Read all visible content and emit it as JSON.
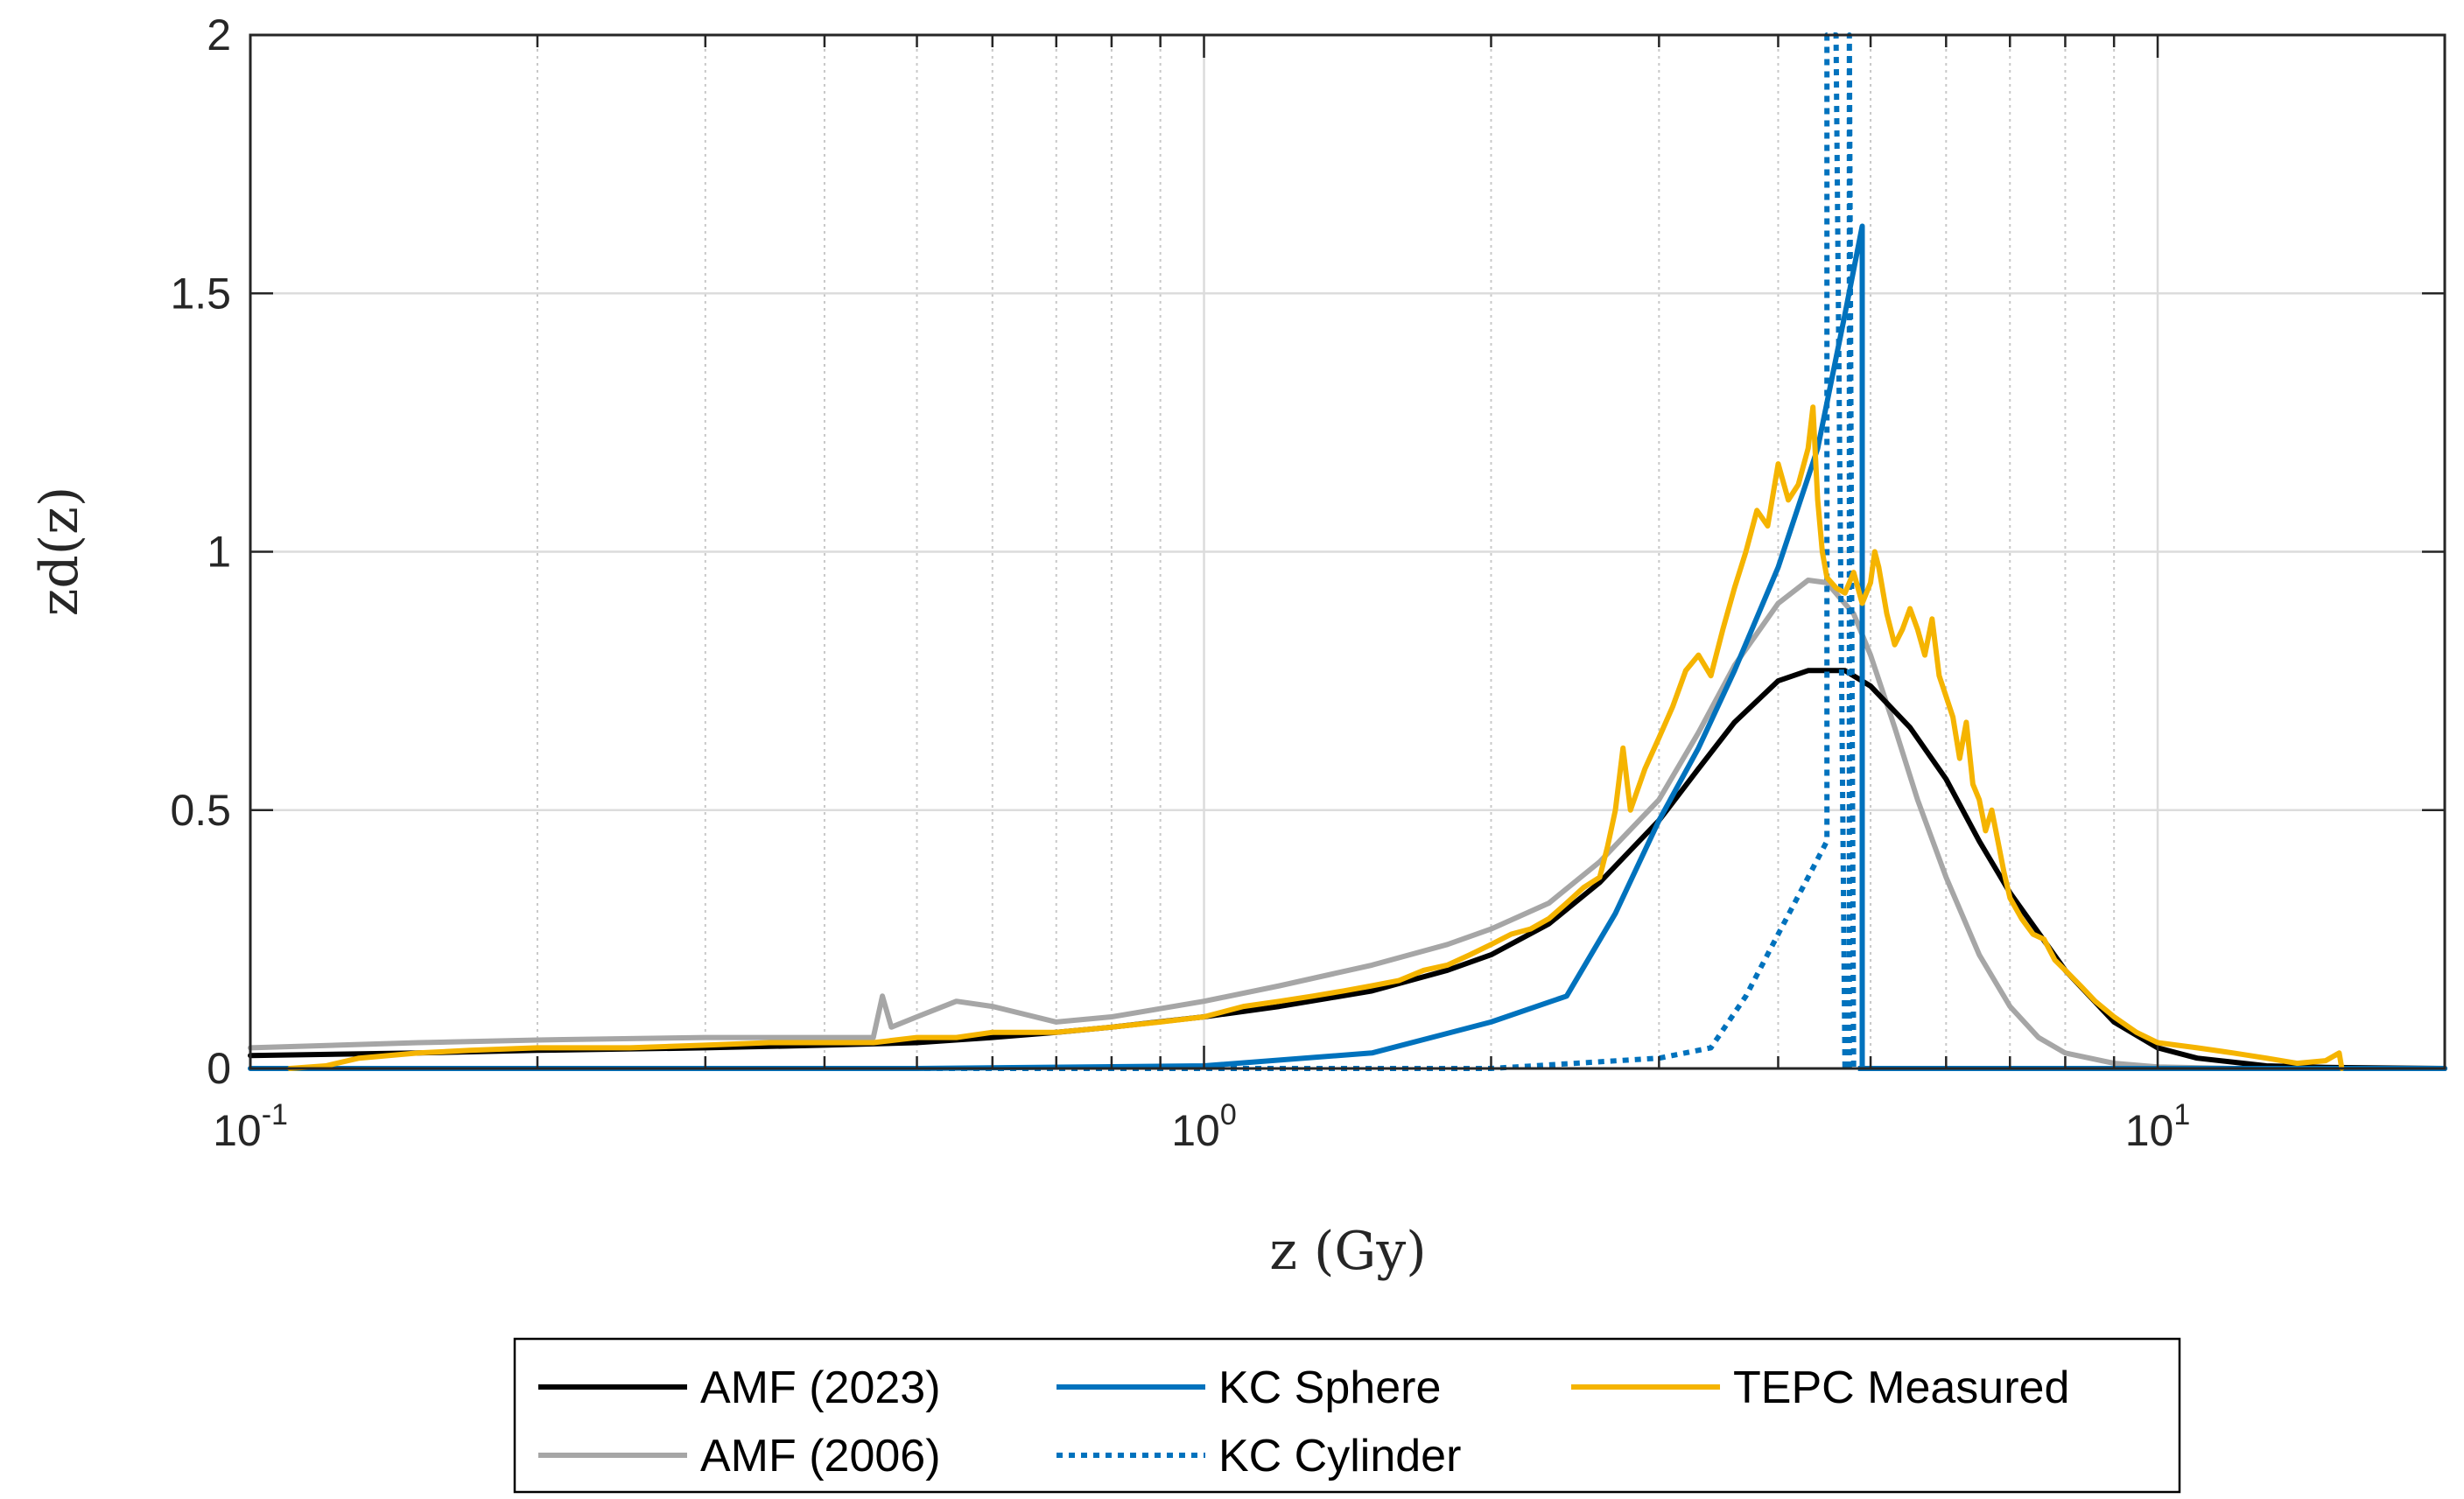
{
  "chart_data": {
    "type": "line",
    "xscale": "log",
    "xlabel": "z (Gy)",
    "ylabel": "zd(z)",
    "xlim": [
      0.1,
      20
    ],
    "ylim": [
      0,
      2
    ],
    "grid": true,
    "legend_position": "bottom",
    "x_ticks": [
      {
        "value": 0.1,
        "base": "10",
        "exp": "-1"
      },
      {
        "value": 1,
        "base": "10",
        "exp": "0"
      },
      {
        "value": 10,
        "base": "10",
        "exp": "1"
      }
    ],
    "y_ticks": [
      {
        "value": 0,
        "label": "0"
      },
      {
        "value": 0.5,
        "label": "0.5"
      },
      {
        "value": 1,
        "label": "1"
      },
      {
        "value": 1.5,
        "label": "1.5"
      },
      {
        "value": 2,
        "label": "2"
      }
    ],
    "series": [
      {
        "name": "AMF (2023)",
        "color": "#000000",
        "style": "solid",
        "x": [
          0.1,
          0.15,
          0.2,
          0.3,
          0.4,
          0.5,
          0.6,
          0.7,
          0.8,
          1.0,
          1.2,
          1.5,
          1.8,
          2.0,
          2.3,
          2.6,
          3.0,
          3.3,
          3.6,
          4.0,
          4.3,
          4.7,
          5.0,
          5.5,
          6.0,
          6.5,
          7.0,
          8.0,
          9.0,
          10.0,
          11.0,
          13.0,
          15.0,
          20.0
        ],
        "y": [
          0.025,
          0.03,
          0.035,
          0.04,
          0.045,
          0.05,
          0.06,
          0.07,
          0.08,
          0.1,
          0.12,
          0.15,
          0.19,
          0.22,
          0.28,
          0.36,
          0.48,
          0.58,
          0.67,
          0.75,
          0.77,
          0.77,
          0.74,
          0.66,
          0.56,
          0.44,
          0.34,
          0.19,
          0.09,
          0.04,
          0.02,
          0.005,
          0.002,
          0.0
        ]
      },
      {
        "name": "AMF (2006)",
        "color": "#a6a6a6",
        "style": "solid",
        "x": [
          0.1,
          0.15,
          0.2,
          0.3,
          0.4,
          0.45,
          0.46,
          0.47,
          0.5,
          0.55,
          0.6,
          0.7,
          0.8,
          1.0,
          1.2,
          1.5,
          1.8,
          2.0,
          2.3,
          2.6,
          3.0,
          3.3,
          3.6,
          4.0,
          4.3,
          4.5,
          4.8,
          5.0,
          5.3,
          5.6,
          6.0,
          6.5,
          7.0,
          7.5,
          8.0,
          9.0,
          10.0,
          12.0,
          15.0,
          20.0
        ],
        "y": [
          0.04,
          0.05,
          0.055,
          0.06,
          0.06,
          0.06,
          0.14,
          0.08,
          0.1,
          0.13,
          0.12,
          0.09,
          0.1,
          0.13,
          0.16,
          0.2,
          0.24,
          0.27,
          0.32,
          0.4,
          0.52,
          0.65,
          0.78,
          0.9,
          0.945,
          0.94,
          0.88,
          0.8,
          0.66,
          0.52,
          0.37,
          0.22,
          0.12,
          0.06,
          0.03,
          0.01,
          0.003,
          0.0,
          0.0,
          0.0
        ]
      },
      {
        "name": "KC Sphere",
        "color": "#0072bd",
        "style": "solid",
        "x": [
          0.1,
          0.5,
          1.0,
          1.5,
          2.0,
          2.4,
          2.7,
          3.0,
          3.3,
          3.6,
          4.0,
          4.4,
          4.7,
          4.9,
          4.9,
          20.0
        ],
        "y": [
          0.0,
          0.0,
          0.005,
          0.03,
          0.09,
          0.14,
          0.3,
          0.48,
          0.62,
          0.77,
          0.97,
          1.2,
          1.46,
          1.63,
          0.0,
          0.0
        ]
      },
      {
        "name": "KC Cylinder",
        "color": "#0072bd",
        "style": "dotted",
        "x": [
          0.1,
          1.0,
          2.0,
          3.0,
          3.4,
          3.7,
          4.0,
          4.3,
          4.5,
          4.5,
          4.6,
          4.7,
          4.75,
          4.75,
          4.8,
          20.0
        ],
        "y": [
          0.0,
          0.0,
          0.0,
          0.02,
          0.04,
          0.14,
          0.26,
          0.37,
          0.44,
          2.0,
          2.0,
          0.0,
          0.0,
          2.0,
          0.0,
          0.0
        ]
      },
      {
        "name": "TEPC Measured",
        "color": "#f5b400",
        "style": "solid",
        "x": [
          0.11,
          0.12,
          0.13,
          0.15,
          0.17,
          0.2,
          0.25,
          0.3,
          0.35,
          0.4,
          0.45,
          0.5,
          0.55,
          0.6,
          0.7,
          0.8,
          0.9,
          1.0,
          1.1,
          1.2,
          1.3,
          1.4,
          1.5,
          1.6,
          1.7,
          1.8,
          1.9,
          2.0,
          2.1,
          2.2,
          2.3,
          2.4,
          2.5,
          2.6,
          2.65,
          2.7,
          2.75,
          2.8,
          2.9,
          3.0,
          3.1,
          3.2,
          3.3,
          3.4,
          3.5,
          3.6,
          3.7,
          3.8,
          3.9,
          4.0,
          4.1,
          4.2,
          4.3,
          4.35,
          4.4,
          4.45,
          4.5,
          4.6,
          4.7,
          4.8,
          4.9,
          5.0,
          5.05,
          5.1,
          5.2,
          5.3,
          5.4,
          5.5,
          5.6,
          5.7,
          5.8,
          5.9,
          6.0,
          6.1,
          6.2,
          6.3,
          6.4,
          6.5,
          6.6,
          6.7,
          6.8,
          6.9,
          7.0,
          7.2,
          7.4,
          7.6,
          7.8,
          8.0,
          8.3,
          8.6,
          9.0,
          9.5,
          10.0,
          11.0,
          12.0,
          13.0,
          14.0,
          15.0,
          15.5,
          15.6
        ],
        "y": [
          0.0,
          0.005,
          0.02,
          0.03,
          0.035,
          0.04,
          0.04,
          0.045,
          0.05,
          0.05,
          0.05,
          0.06,
          0.06,
          0.07,
          0.07,
          0.08,
          0.09,
          0.1,
          0.12,
          0.13,
          0.14,
          0.15,
          0.16,
          0.17,
          0.19,
          0.2,
          0.22,
          0.24,
          0.26,
          0.27,
          0.29,
          0.32,
          0.35,
          0.37,
          0.43,
          0.5,
          0.62,
          0.5,
          0.58,
          0.64,
          0.7,
          0.77,
          0.8,
          0.76,
          0.85,
          0.93,
          1.0,
          1.08,
          1.05,
          1.17,
          1.1,
          1.13,
          1.2,
          1.28,
          1.1,
          1.0,
          0.95,
          0.93,
          0.92,
          0.96,
          0.9,
          0.94,
          1.0,
          0.97,
          0.88,
          0.82,
          0.85,
          0.89,
          0.85,
          0.8,
          0.87,
          0.76,
          0.72,
          0.68,
          0.6,
          0.67,
          0.55,
          0.52,
          0.46,
          0.5,
          0.44,
          0.38,
          0.33,
          0.29,
          0.26,
          0.25,
          0.21,
          0.19,
          0.16,
          0.13,
          0.1,
          0.07,
          0.05,
          0.04,
          0.03,
          0.02,
          0.01,
          0.015,
          0.03,
          0.0
        ]
      }
    ]
  }
}
